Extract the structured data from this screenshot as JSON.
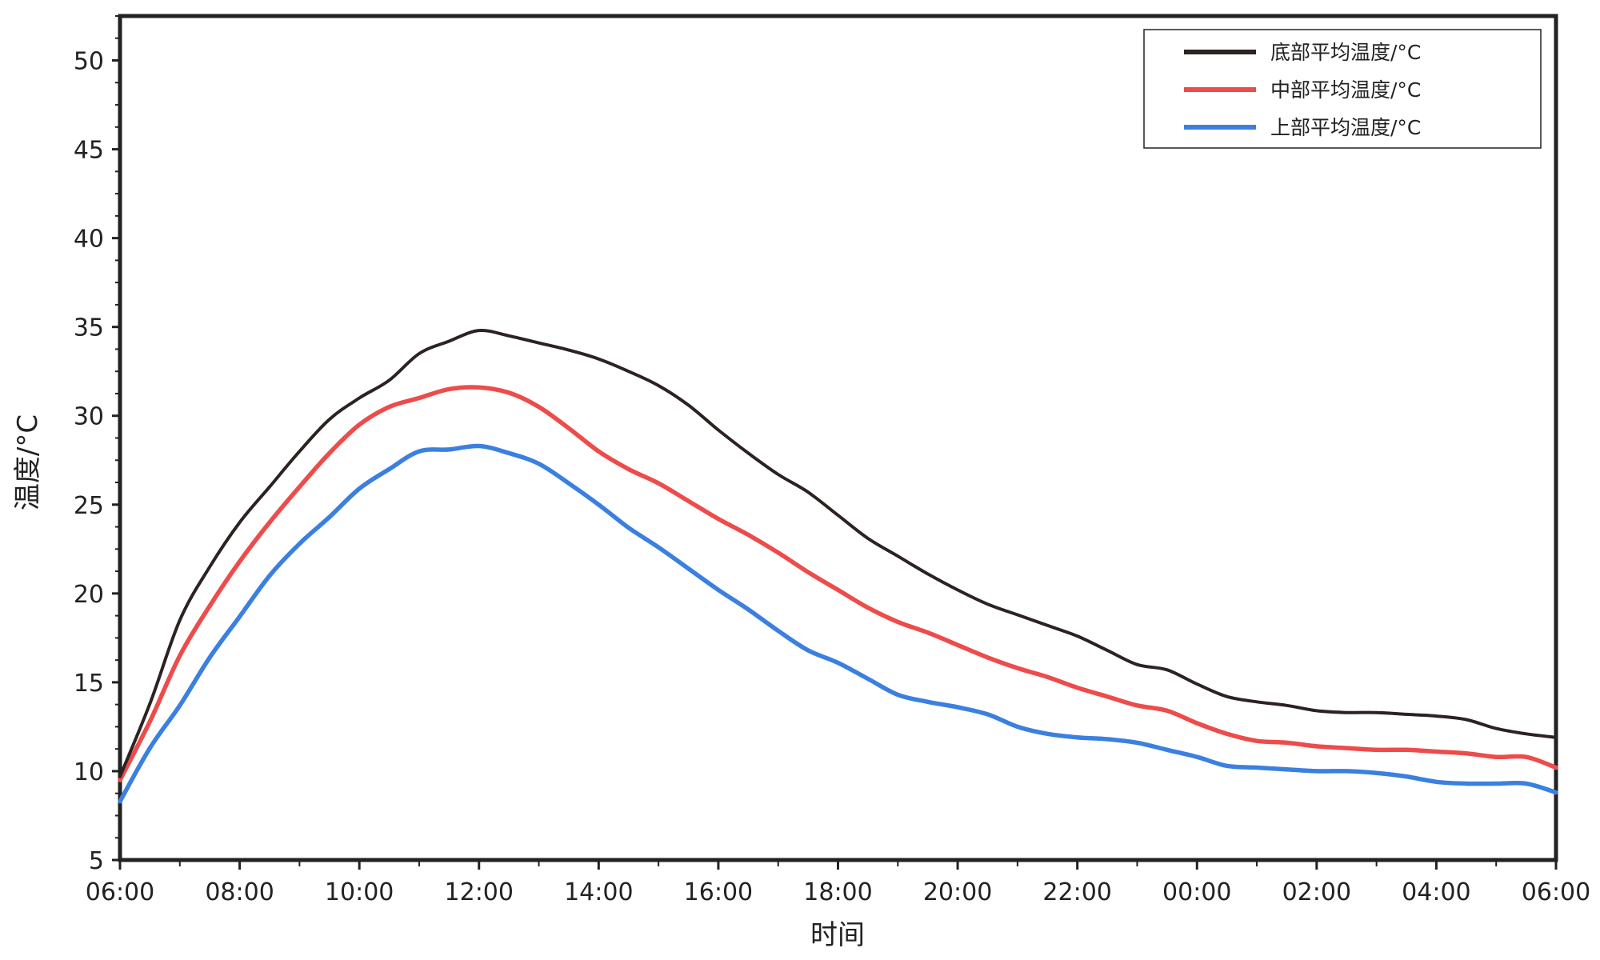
{
  "chart_data": {
    "type": "line",
    "title": "",
    "xlabel": "时间",
    "ylabel": "温度/°C",
    "ylim": [
      5,
      52.5
    ],
    "yticks": [
      5,
      10,
      15,
      20,
      25,
      30,
      35,
      40,
      45,
      50
    ],
    "xlim": [
      0,
      24
    ],
    "xticks": [
      {
        "value": 0,
        "label": "06:00"
      },
      {
        "value": 2,
        "label": "08:00"
      },
      {
        "value": 4,
        "label": "10:00"
      },
      {
        "value": 6,
        "label": "12:00"
      },
      {
        "value": 8,
        "label": "14:00"
      },
      {
        "value": 10,
        "label": "16:00"
      },
      {
        "value": 12,
        "label": "18:00"
      },
      {
        "value": 14,
        "label": "20:00"
      },
      {
        "value": 16,
        "label": "22:00"
      },
      {
        "value": 18,
        "label": "00:00"
      },
      {
        "value": 20,
        "label": "02:00"
      },
      {
        "value": 22,
        "label": "04:00"
      },
      {
        "value": 24,
        "label": "06:00"
      }
    ],
    "x_unit": "hours since 06:00",
    "grid": false,
    "legend_position": "top-right",
    "series": [
      {
        "name": "底部平均温度/°C",
        "color": "#2d2222",
        "x": [
          0,
          0.5,
          1,
          1.5,
          2,
          2.5,
          3,
          3.5,
          4,
          4.5,
          5,
          5.5,
          6,
          6.5,
          7,
          7.5,
          8,
          8.5,
          9,
          9.5,
          10,
          10.5,
          11,
          11.5,
          12,
          12.5,
          13,
          13.5,
          14,
          14.5,
          15,
          15.5,
          16,
          16.5,
          17,
          17.5,
          18,
          18.5,
          19,
          19.5,
          20,
          20.5,
          21,
          21.5,
          22,
          22.5,
          23,
          23.5,
          24
        ],
        "y": [
          9.7,
          13.8,
          18.5,
          21.5,
          24.0,
          26.0,
          28.0,
          29.8,
          31.0,
          32.0,
          33.5,
          34.2,
          34.8,
          34.5,
          34.1,
          33.7,
          33.2,
          32.5,
          31.7,
          30.6,
          29.2,
          27.9,
          26.7,
          25.7,
          24.4,
          23.1,
          22.1,
          21.1,
          20.2,
          19.4,
          18.8,
          18.2,
          17.6,
          16.8,
          16.0,
          15.7,
          14.9,
          14.2,
          13.9,
          13.7,
          13.4,
          13.3,
          13.3,
          13.2,
          13.1,
          12.9,
          12.4,
          12.1,
          11.9
        ]
      },
      {
        "name": "中部平均温度/°C",
        "color": "#ee4b4b",
        "x": [
          0,
          0.5,
          1,
          1.5,
          2,
          2.5,
          3,
          3.5,
          4,
          4.5,
          5,
          5.5,
          6,
          6.5,
          7,
          7.5,
          8,
          8.5,
          9,
          9.5,
          10,
          10.5,
          11,
          11.5,
          12,
          12.5,
          13,
          13.5,
          14,
          14.5,
          15,
          15.5,
          16,
          16.5,
          17,
          17.5,
          18,
          18.5,
          19,
          19.5,
          20,
          20.5,
          21,
          21.5,
          22,
          22.5,
          23,
          23.5,
          24
        ],
        "y": [
          9.5,
          12.8,
          16.5,
          19.3,
          21.8,
          24.0,
          26.0,
          27.9,
          29.5,
          30.5,
          31.0,
          31.5,
          31.6,
          31.3,
          30.5,
          29.3,
          28.0,
          27.0,
          26.2,
          25.2,
          24.2,
          23.3,
          22.3,
          21.2,
          20.2,
          19.2,
          18.4,
          17.8,
          17.1,
          16.4,
          15.8,
          15.3,
          14.7,
          14.2,
          13.7,
          13.4,
          12.7,
          12.1,
          11.7,
          11.6,
          11.4,
          11.3,
          11.2,
          11.2,
          11.1,
          11.0,
          10.8,
          10.8,
          10.2
        ]
      },
      {
        "name": "上部平均温度/°C",
        "color": "#3b80e0",
        "x": [
          0,
          0.5,
          1,
          1.5,
          2,
          2.5,
          3,
          3.5,
          4,
          4.5,
          5,
          5.5,
          6,
          6.5,
          7,
          7.5,
          8,
          8.5,
          9,
          9.5,
          10,
          10.5,
          11,
          11.5,
          12,
          12.5,
          13,
          13.5,
          14,
          14.5,
          15,
          15.5,
          16,
          16.5,
          17,
          17.5,
          18,
          18.5,
          19,
          19.5,
          20,
          20.5,
          21,
          21.5,
          22,
          22.5,
          23,
          23.5,
          24
        ],
        "y": [
          8.3,
          11.3,
          13.7,
          16.4,
          18.7,
          21.0,
          22.8,
          24.3,
          25.9,
          27.0,
          28.0,
          28.1,
          28.3,
          27.9,
          27.3,
          26.2,
          25.0,
          23.7,
          22.6,
          21.4,
          20.2,
          19.1,
          17.9,
          16.8,
          16.1,
          15.2,
          14.3,
          13.9,
          13.6,
          13.2,
          12.5,
          12.1,
          11.9,
          11.8,
          11.6,
          11.2,
          10.8,
          10.3,
          10.2,
          10.1,
          10.0,
          10.0,
          9.9,
          9.7,
          9.4,
          9.3,
          9.3,
          9.3,
          8.8
        ]
      }
    ]
  }
}
